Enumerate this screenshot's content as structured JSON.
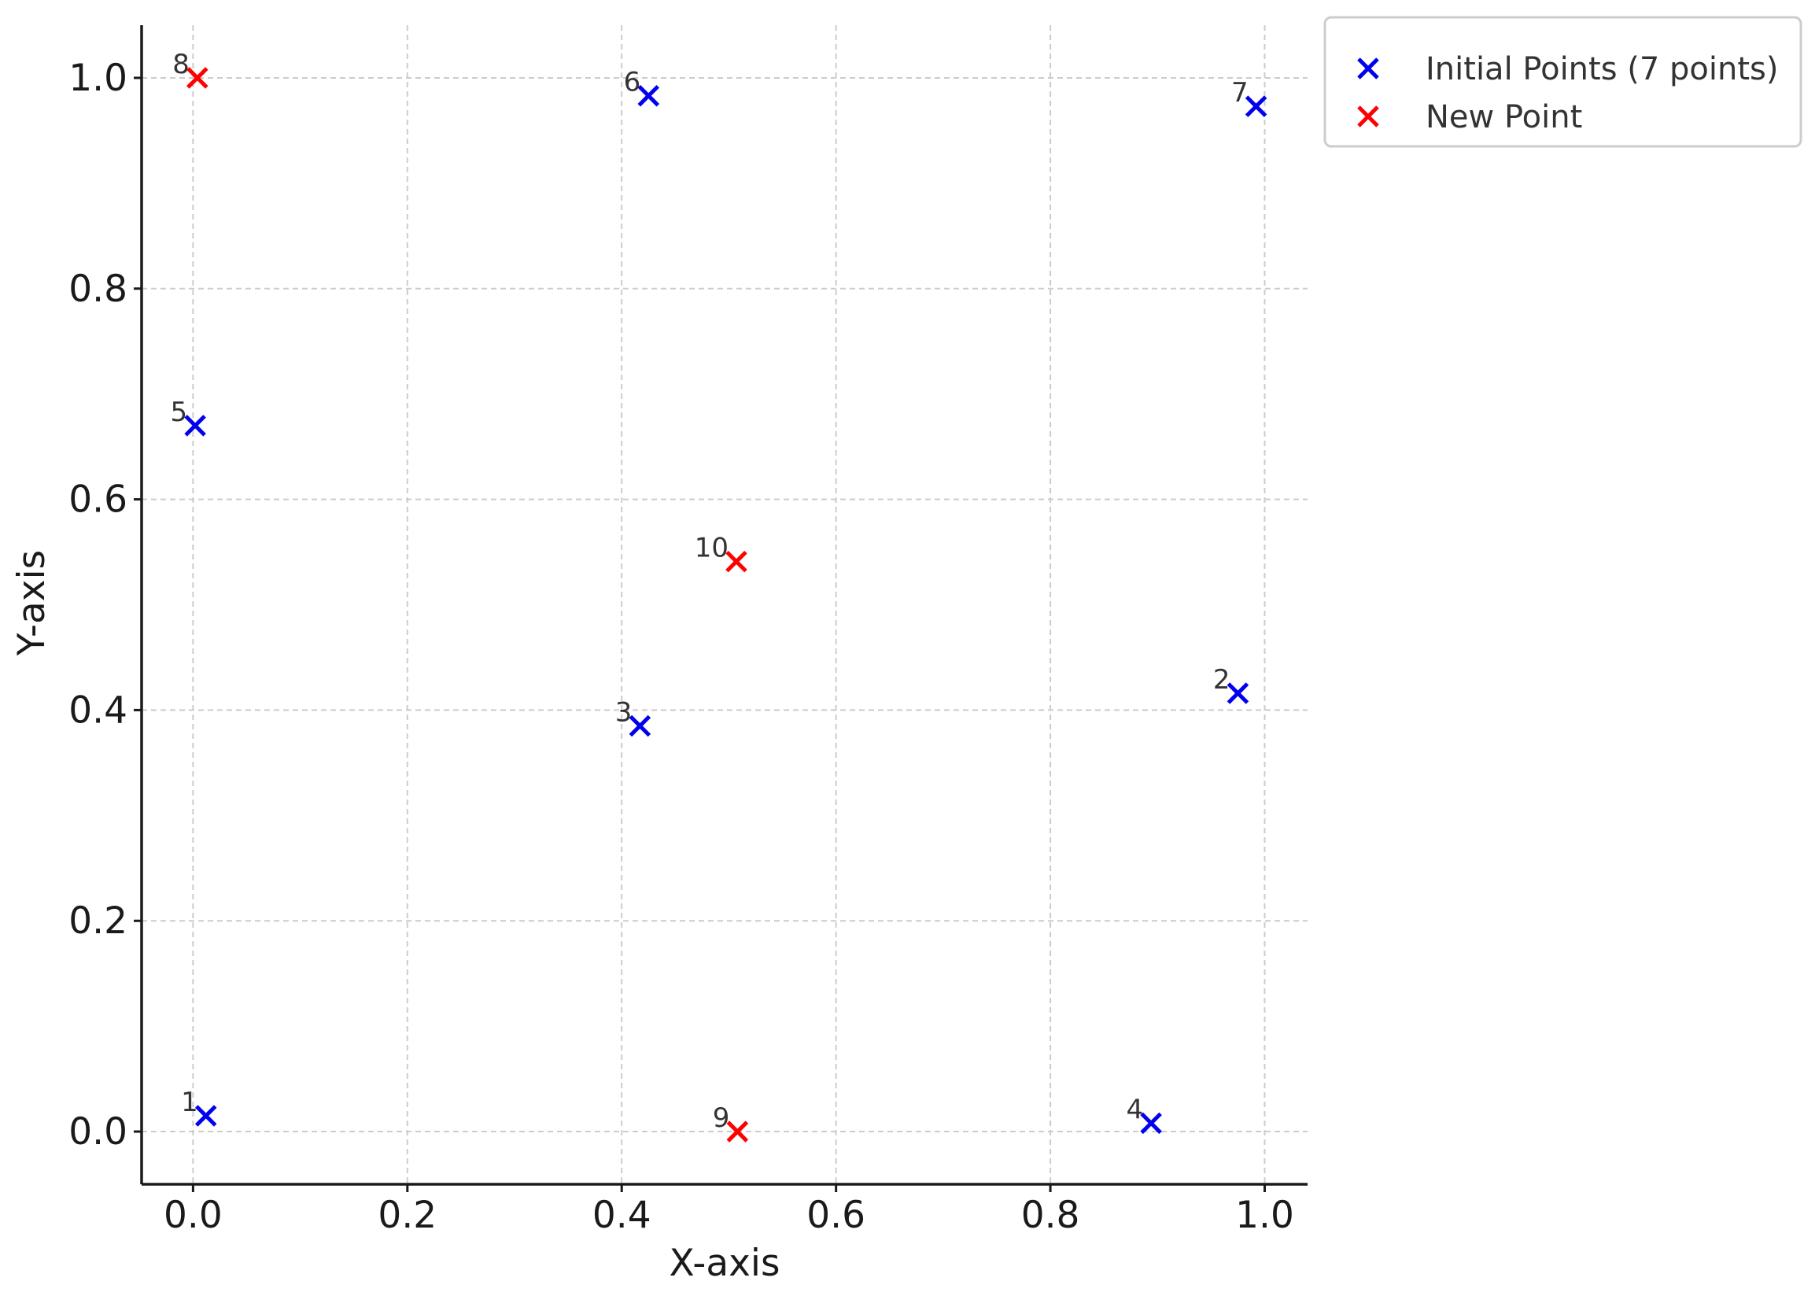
{
  "chart_data": {
    "type": "scatter",
    "title": "",
    "xlabel": "X-axis",
    "ylabel": "Y-axis",
    "xlim": [
      -0.048,
      1.04
    ],
    "ylim": [
      -0.05,
      1.05
    ],
    "xticks": [
      0.0,
      0.2,
      0.4,
      0.6,
      0.8,
      1.0
    ],
    "yticks": [
      0.0,
      0.2,
      0.4,
      0.6,
      0.8,
      1.0
    ],
    "xtick_labels": [
      "0.0",
      "0.2",
      "0.4",
      "0.6",
      "0.8",
      "1.0"
    ],
    "ytick_labels": [
      "0.0",
      "0.2",
      "0.4",
      "0.6",
      "0.8",
      "1.0"
    ],
    "grid": true,
    "legend_position": "outside-top-right",
    "series": [
      {
        "name": "Initial Points (7 points)",
        "color": "#0000ee",
        "marker": "x",
        "points": [
          {
            "label": "1",
            "x": 0.012,
            "y": 0.015
          },
          {
            "label": "2",
            "x": 0.975,
            "y": 0.416
          },
          {
            "label": "3",
            "x": 0.417,
            "y": 0.385
          },
          {
            "label": "4",
            "x": 0.894,
            "y": 0.008
          },
          {
            "label": "5",
            "x": 0.002,
            "y": 0.67
          },
          {
            "label": "6",
            "x": 0.425,
            "y": 0.983
          },
          {
            "label": "7",
            "x": 0.992,
            "y": 0.973
          }
        ]
      },
      {
        "name": "New Point",
        "color": "#ff0000",
        "marker": "x",
        "points": [
          {
            "label": "8",
            "x": 0.004,
            "y": 1.0
          },
          {
            "label": "9",
            "x": 0.508,
            "y": 0.0
          },
          {
            "label": "10",
            "x": 0.507,
            "y": 0.541
          }
        ]
      }
    ]
  }
}
